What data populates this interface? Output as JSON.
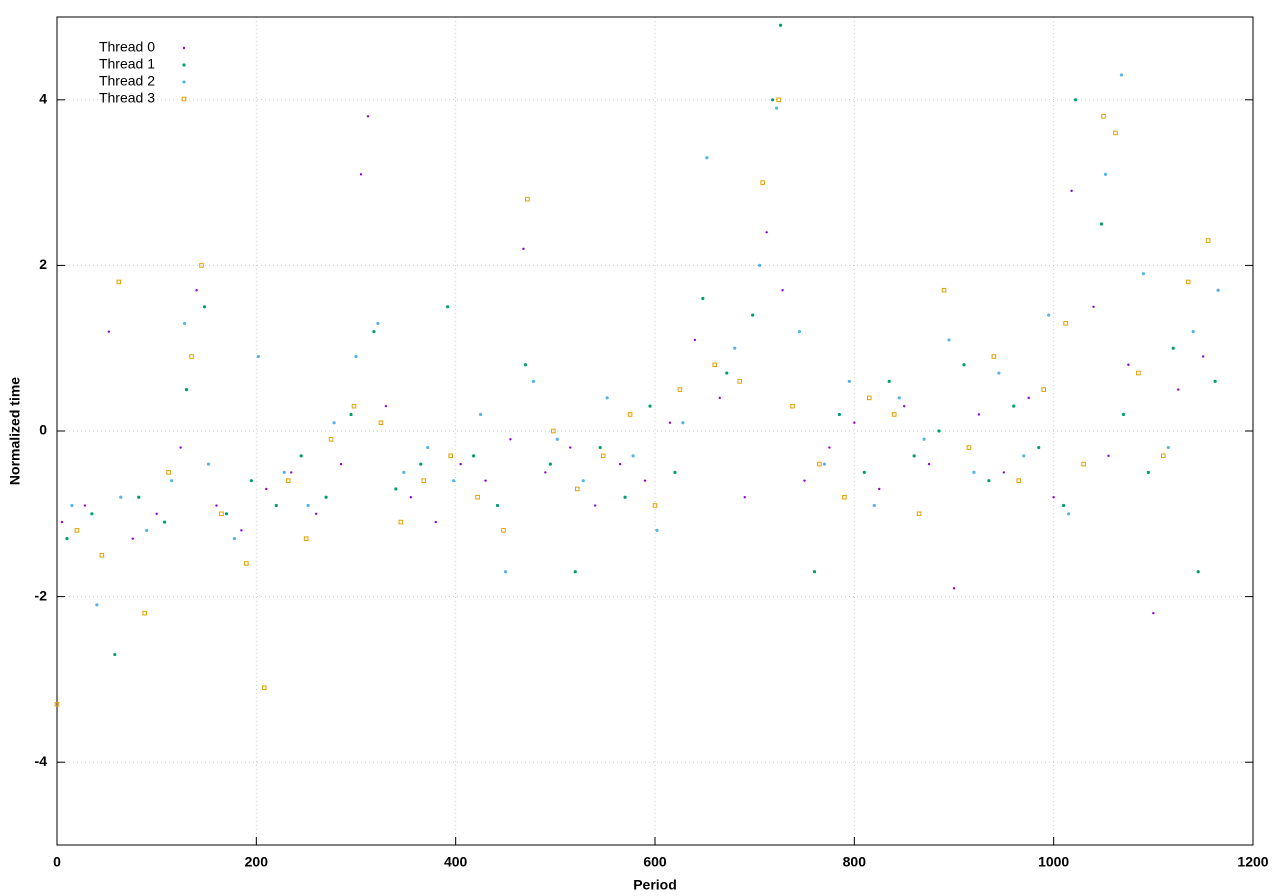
{
  "chart_data": {
    "type": "scatter",
    "x_label": "Period",
    "y_label": "Normalized time",
    "xlim": [
      0,
      1200
    ],
    "ylim": [
      -5,
      5
    ],
    "xticks": [
      0,
      200,
      400,
      600,
      800,
      1000,
      1200
    ],
    "yticks": [
      -4,
      -2,
      0,
      2,
      4
    ],
    "grid": true,
    "legend": "top-left",
    "series": [
      {
        "name": "Thread 0",
        "color": "#9400d3",
        "x": [
          5,
          28,
          52,
          76,
          100,
          124,
          140,
          160,
          185,
          210,
          235,
          260,
          285,
          305,
          312,
          330,
          355,
          380,
          405,
          430,
          455,
          468,
          490,
          515,
          540,
          565,
          590,
          615,
          640,
          665,
          690,
          712,
          728,
          750,
          775,
          800,
          825,
          850,
          875,
          900,
          925,
          950,
          975,
          1000,
          1018,
          1040,
          1055,
          1075,
          1100,
          1125,
          1150
        ],
        "values": [
          -1.1,
          -0.9,
          1.2,
          -1.3,
          -1.0,
          -0.2,
          1.7,
          -0.9,
          -1.2,
          -0.7,
          -0.5,
          -1.0,
          -0.4,
          3.1,
          3.8,
          0.3,
          -0.8,
          -1.1,
          -0.4,
          -0.6,
          -0.1,
          2.2,
          -0.5,
          -0.2,
          -0.9,
          -0.4,
          -0.6,
          0.1,
          1.1,
          0.4,
          -0.8,
          2.4,
          1.7,
          -0.6,
          -0.2,
          0.1,
          -0.7,
          0.3,
          -0.4,
          -1.9,
          0.2,
          -0.5,
          0.4,
          -0.8,
          2.9,
          1.5,
          -0.3,
          0.8,
          -2.2,
          0.5,
          0.9
        ]
      },
      {
        "name": "Thread 1",
        "color": "#009e73",
        "x": [
          10,
          35,
          58,
          82,
          108,
          130,
          148,
          170,
          195,
          220,
          245,
          270,
          295,
          318,
          340,
          365,
          392,
          418,
          442,
          470,
          495,
          520,
          545,
          570,
          595,
          620,
          648,
          672,
          698,
          718,
          726,
          760,
          785,
          810,
          835,
          860,
          885,
          910,
          935,
          960,
          985,
          1010,
          1022,
          1048,
          1070,
          1095,
          1120,
          1145,
          1162
        ],
        "values": [
          -1.3,
          -1.0,
          -2.7,
          -0.8,
          -1.1,
          0.5,
          1.5,
          -1.0,
          -0.6,
          -0.9,
          -0.3,
          -0.8,
          0.2,
          1.2,
          -0.7,
          -0.4,
          1.5,
          -0.3,
          -0.9,
          0.8,
          -0.4,
          -1.7,
          -0.2,
          -0.8,
          0.3,
          -0.5,
          1.6,
          0.7,
          1.4,
          4.0,
          4.9,
          -1.7,
          0.2,
          -0.5,
          0.6,
          -0.3,
          0.0,
          0.8,
          -0.6,
          0.3,
          -0.2,
          -0.9,
          4.0,
          2.5,
          0.2,
          -0.5,
          1.0,
          -1.7,
          0.6
        ]
      },
      {
        "name": "Thread 2",
        "color": "#56b4e9",
        "x": [
          15,
          40,
          64,
          90,
          115,
          128,
          152,
          178,
          202,
          228,
          252,
          278,
          300,
          322,
          348,
          372,
          398,
          425,
          450,
          478,
          502,
          528,
          552,
          578,
          602,
          628,
          652,
          680,
          705,
          722,
          745,
          770,
          795,
          820,
          845,
          870,
          895,
          920,
          945,
          970,
          995,
          1015,
          1052,
          1068,
          1090,
          1115,
          1140,
          1165
        ],
        "values": [
          -0.9,
          -2.1,
          -0.8,
          -1.2,
          -0.6,
          1.3,
          -0.4,
          -1.3,
          0.9,
          -0.5,
          -0.9,
          0.1,
          0.9,
          1.3,
          -0.5,
          -0.2,
          -0.6,
          0.2,
          -1.7,
          0.6,
          -0.1,
          -0.6,
          0.4,
          -0.3,
          -1.2,
          0.1,
          3.3,
          1.0,
          2.0,
          3.9,
          1.2,
          -0.4,
          0.6,
          -0.9,
          0.4,
          -0.1,
          1.1,
          -0.5,
          0.7,
          -0.3,
          1.4,
          -1.0,
          3.1,
          4.3,
          1.9,
          -0.2,
          1.2,
          1.7
        ]
      },
      {
        "name": "Thread 3",
        "color": "#e69f00",
        "x": [
          0,
          20,
          45,
          62,
          88,
          112,
          135,
          145,
          165,
          190,
          208,
          232,
          250,
          275,
          298,
          325,
          345,
          368,
          395,
          422,
          448,
          472,
          498,
          522,
          548,
          575,
          600,
          625,
          660,
          685,
          708,
          724,
          738,
          765,
          790,
          815,
          840,
          865,
          890,
          915,
          940,
          965,
          990,
          1012,
          1030,
          1050,
          1062,
          1085,
          1110,
          1135,
          1155
        ],
        "values": [
          -3.3,
          -1.2,
          -1.5,
          1.8,
          -2.2,
          -0.5,
          0.9,
          2.0,
          -1.0,
          -1.6,
          -3.1,
          -0.6,
          -1.3,
          -0.1,
          0.3,
          0.1,
          -1.1,
          -0.6,
          -0.3,
          -0.8,
          -1.2,
          2.8,
          0.0,
          -0.7,
          -0.3,
          0.2,
          -0.9,
          0.5,
          0.8,
          0.6,
          3.0,
          4.0,
          0.3,
          -0.4,
          -0.8,
          0.4,
          0.2,
          -1.0,
          1.7,
          -0.2,
          0.9,
          -0.6,
          0.5,
          1.3,
          -0.4,
          3.8,
          3.6,
          0.7,
          -0.3,
          1.8,
          2.3
        ]
      }
    ]
  }
}
